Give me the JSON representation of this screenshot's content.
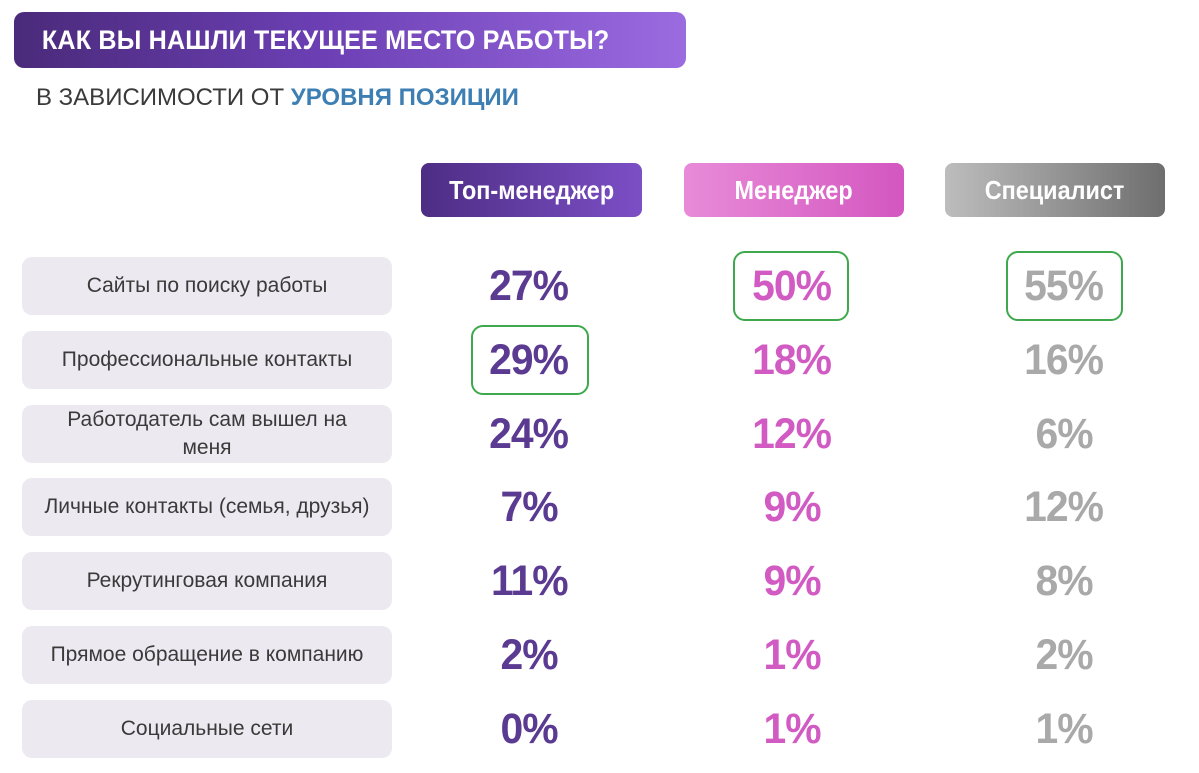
{
  "header": {
    "title": "КАК ВЫ НАШЛИ ТЕКУЩЕЕ МЕСТО РАБОТЫ?",
    "subtitle_prefix": "В ЗАВИСИМОСТИ ОТ ",
    "subtitle_accent": "УРОВНЯ ПОЗИЦИИ"
  },
  "colors": {
    "top_manager": "#5b3a92",
    "manager": "#d25bc3",
    "specialist": "#a9a9a9",
    "highlight_border": "#3fa84c"
  },
  "chart_data": {
    "type": "table",
    "title": "КАК ВЫ НАШЛИ ТЕКУЩЕЕ МЕСТО РАБОТЫ?",
    "subtitle": "В ЗАВИСИМОСТИ ОТ УРОВНЯ ПОЗИЦИИ",
    "columns": [
      "Топ-менеджер",
      "Менеджер",
      "Специалист"
    ],
    "rows": [
      {
        "label": "Сайты по поиску работы",
        "values": [
          "27%",
          "50%",
          "55%"
        ],
        "highlighted": [
          false,
          true,
          true
        ]
      },
      {
        "label": "Профессиональные контакты",
        "values": [
          "29%",
          "18%",
          "16%"
        ],
        "highlighted": [
          true,
          false,
          false
        ]
      },
      {
        "label": "Работодатель сам вышел на меня",
        "values": [
          "24%",
          "12%",
          "6%"
        ],
        "highlighted": [
          false,
          false,
          false
        ]
      },
      {
        "label": "Личные контакты (семья, друзья)",
        "values": [
          "7%",
          "9%",
          "12%"
        ],
        "highlighted": [
          false,
          false,
          false
        ]
      },
      {
        "label": "Рекрутинговая компания",
        "values": [
          "11%",
          "9%",
          "8%"
        ],
        "highlighted": [
          false,
          false,
          false
        ]
      },
      {
        "label": "Прямое обращение в компанию",
        "values": [
          "2%",
          "1%",
          "2%"
        ],
        "highlighted": [
          false,
          false,
          false
        ]
      },
      {
        "label": "Социальные сети",
        "values": [
          "0%",
          "1%",
          "1%"
        ],
        "highlighted": [
          false,
          false,
          false
        ]
      }
    ]
  }
}
